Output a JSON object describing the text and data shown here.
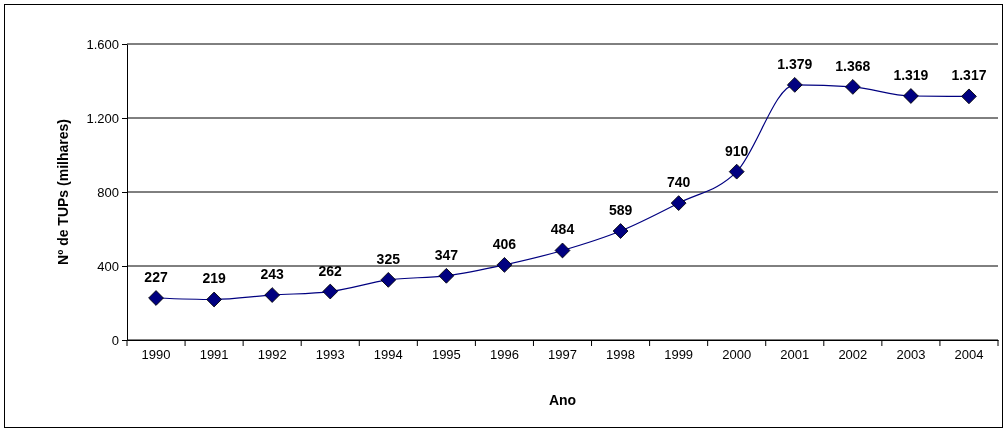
{
  "chart_data": {
    "type": "line",
    "xlabel": "Ano",
    "ylabel": "Nº de TUPs (milhares)",
    "categories": [
      "1990",
      "1991",
      "1992",
      "1993",
      "1994",
      "1995",
      "1996",
      "1997",
      "1998",
      "1999",
      "2000",
      "2001",
      "2002",
      "2003",
      "2004"
    ],
    "series": [
      {
        "color": "#000080",
        "values": [
          227,
          219,
          243,
          262,
          325,
          347,
          406,
          484,
          589,
          740,
          910,
          1379,
          1368,
          1319,
          1317
        ],
        "value_labels": [
          "227",
          "219",
          "243",
          "262",
          "325",
          "347",
          "406",
          "484",
          "589",
          "740",
          "910",
          "1.379",
          "1.368",
          "1.319",
          "1.317"
        ]
      }
    ],
    "ylim": [
      0,
      1600
    ],
    "yticks": [
      0,
      400,
      800,
      {
        "value": 1200,
        "label": "1.200"
      },
      {
        "value": 1600,
        "label": "1.600"
      }
    ],
    "grid": "y",
    "marker": "diamond",
    "line_style": "solid"
  }
}
